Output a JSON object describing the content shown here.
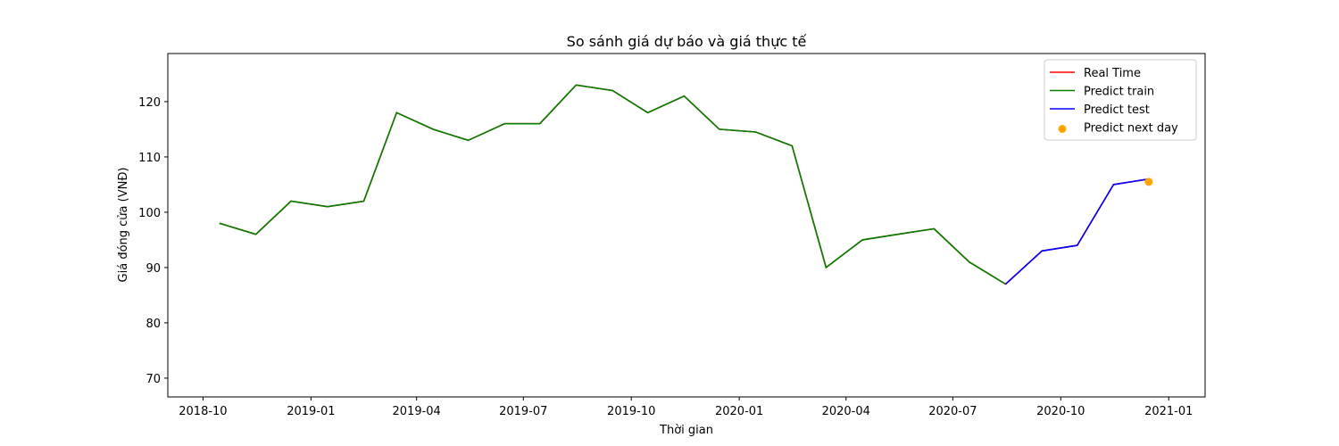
{
  "chart_data": {
    "type": "line",
    "title": "So sánh giá dự báo và giá thực tế",
    "xlabel": "Thời gian",
    "ylabel": "Giá đóng cửa (VNĐ)",
    "x": [
      "2018-10",
      "2018-11",
      "2018-12",
      "2019-01",
      "2019-02",
      "2019-03",
      "2019-04",
      "2019-05",
      "2019-06",
      "2019-07",
      "2019-08",
      "2019-09",
      "2019-10",
      "2019-11",
      "2019-12",
      "2020-01",
      "2020-02",
      "2020-03",
      "2020-04",
      "2020-05",
      "2020-06",
      "2020-07",
      "2020-08",
      "2020-09",
      "2020-10",
      "2020-11",
      "2020-12"
    ],
    "series": [
      {
        "name": "Real Time",
        "color": "#ff0000",
        "mark": "line",
        "values": [
          98,
          96,
          102,
          101,
          102,
          118,
          115,
          113,
          116,
          116,
          123,
          122,
          118,
          121,
          115,
          114.5,
          112,
          90,
          95,
          96,
          97,
          91,
          87,
          93,
          94,
          105,
          106
        ]
      },
      {
        "name": "Predict train",
        "color": "#008000",
        "mark": "line",
        "values": [
          98,
          96,
          102,
          101,
          102,
          118,
          115,
          113,
          116,
          116,
          123,
          122,
          118,
          121,
          115,
          114.5,
          112,
          90,
          95,
          96,
          97,
          91,
          87,
          null,
          null,
          null,
          null
        ]
      },
      {
        "name": "Predict test",
        "color": "#0000ff",
        "mark": "line",
        "values": [
          null,
          null,
          null,
          null,
          null,
          null,
          null,
          null,
          null,
          null,
          null,
          null,
          null,
          null,
          null,
          null,
          null,
          null,
          null,
          null,
          null,
          null,
          87,
          93,
          94,
          105,
          106
        ]
      },
      {
        "name": "Predict next day",
        "color": "#ffa500",
        "mark": "scatter",
        "values": [
          null,
          null,
          null,
          null,
          null,
          null,
          null,
          null,
          null,
          null,
          null,
          null,
          null,
          null,
          null,
          null,
          null,
          null,
          null,
          null,
          null,
          null,
          null,
          null,
          null,
          null,
          105.5
        ]
      }
    ],
    "xlim": [
      "2018-09",
      "2021-02"
    ],
    "xticks": [
      "2018-10",
      "2019-01",
      "2019-04",
      "2019-07",
      "2019-10",
      "2020-01",
      "2020-04",
      "2020-07",
      "2020-10",
      "2021-01"
    ],
    "ylim": [
      66.6,
      128.7
    ],
    "yticks": [
      70,
      80,
      90,
      100,
      110,
      120
    ],
    "grid": false,
    "legend": "upper right"
  }
}
